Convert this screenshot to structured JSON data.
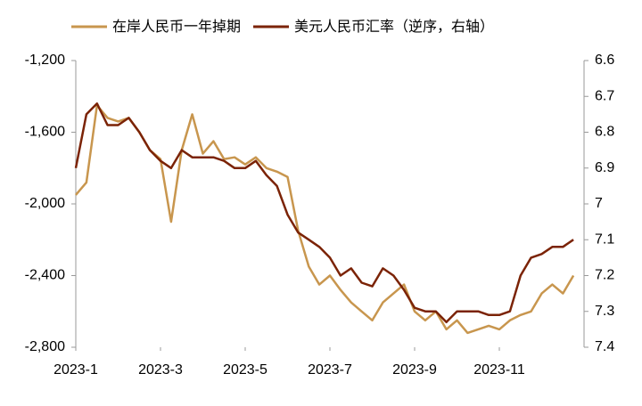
{
  "chart_data": {
    "type": "line",
    "x": [
      0,
      0.25,
      0.5,
      0.75,
      1,
      1.25,
      1.5,
      1.75,
      2,
      2.25,
      2.5,
      2.75,
      3,
      3.25,
      3.5,
      3.75,
      4,
      4.25,
      4.5,
      4.75,
      5,
      5.25,
      5.5,
      5.75,
      6,
      6.25,
      6.5,
      6.75,
      7,
      7.25,
      7.5,
      7.75,
      8,
      8.25,
      8.5,
      8.75,
      9,
      9.25,
      9.5,
      9.75,
      10,
      10.25,
      10.5,
      10.75,
      11,
      11.25,
      11.5,
      11.75
    ],
    "xlim": [
      0,
      12
    ],
    "xticks": [
      {
        "value": 0,
        "label": "2023-1"
      },
      {
        "value": 2,
        "label": "2023-3"
      },
      {
        "value": 4,
        "label": "2023-5"
      },
      {
        "value": 6,
        "label": "2023-7"
      },
      {
        "value": 8,
        "label": "2023-9"
      },
      {
        "value": 10,
        "label": "2023-11"
      }
    ],
    "ylim": [
      -2800,
      -1200
    ],
    "yticks": [
      {
        "value": -1200,
        "label": "-1,200"
      },
      {
        "value": -1600,
        "label": "-1,600"
      },
      {
        "value": -2000,
        "label": "-2,000"
      },
      {
        "value": -2400,
        "label": "-2,400"
      },
      {
        "value": -2800,
        "label": "-2,800"
      }
    ],
    "y2lim": [
      6.6,
      7.4
    ],
    "y2_inverted": true,
    "y2ticks": [
      6.6,
      6.7,
      6.8,
      6.9,
      7,
      7.1,
      7.2,
      7.3,
      7.4
    ],
    "legend": "top",
    "series": [
      {
        "name": "在岸人民币一年掉期",
        "color": "#c8964e",
        "values": [
          -1950,
          -1880,
          -1450,
          -1520,
          -1540,
          -1520,
          -1600,
          -1700,
          -1750,
          -2100,
          -1700,
          -1500,
          -1720,
          -1650,
          -1750,
          -1740,
          -1780,
          -1740,
          -1800,
          -1820,
          -1850,
          -2150,
          -2350,
          -2450,
          -2400,
          -2480,
          -2550,
          -2600,
          -2650,
          -2550,
          -2500,
          -2450,
          -2600,
          -2650,
          -2600,
          -2700,
          -2650,
          -2720,
          -2700,
          -2680,
          -2700,
          -2650,
          -2620,
          -2600,
          -2500,
          -2450,
          -2500,
          -2400
        ]
      },
      {
        "name": "美元人民币汇率（逆序，右轴）",
        "color": "#7b2306",
        "axis": "y2",
        "values": [
          6.9,
          6.75,
          6.72,
          6.78,
          6.78,
          6.76,
          6.8,
          6.85,
          6.88,
          6.9,
          6.85,
          6.87,
          6.87,
          6.87,
          6.88,
          6.9,
          6.9,
          6.88,
          6.92,
          6.95,
          7.03,
          7.08,
          7.1,
          7.12,
          7.15,
          7.2,
          7.18,
          7.22,
          7.23,
          7.18,
          7.2,
          7.24,
          7.29,
          7.3,
          7.3,
          7.33,
          7.3,
          7.3,
          7.3,
          7.31,
          7.31,
          7.3,
          7.2,
          7.15,
          7.14,
          7.12,
          7.12,
          7.1
        ]
      }
    ]
  }
}
